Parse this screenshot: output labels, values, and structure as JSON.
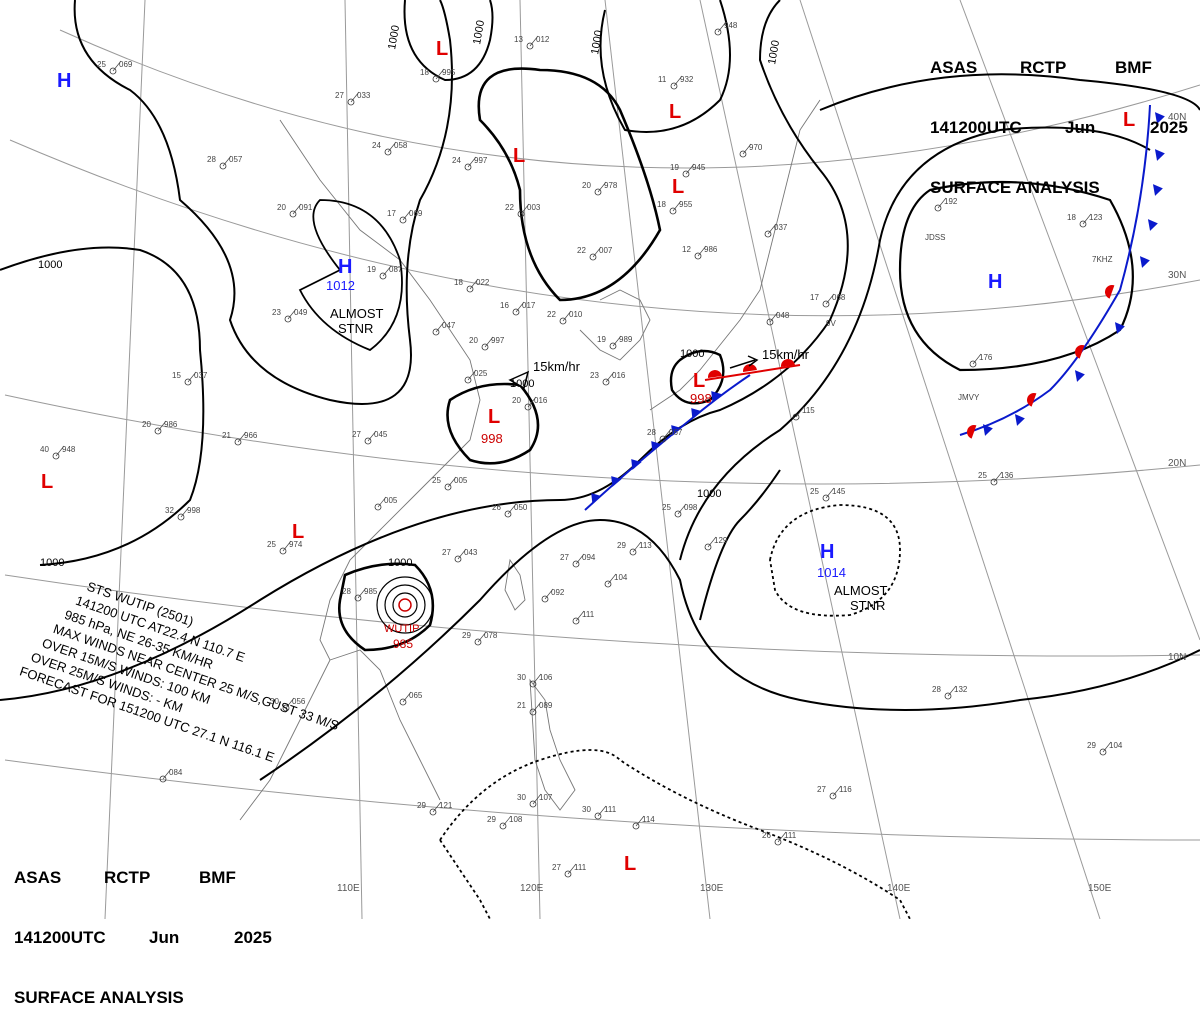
{
  "header": {
    "agency_code": "ASAS",
    "station": "RCTP",
    "bureau": "BMF",
    "valid_time": "141200UTC",
    "month": "Jun",
    "year": "2025",
    "product": "SURFACE ANALYSIS"
  },
  "colors": {
    "high": "#1a1aff",
    "low": "#e00000",
    "isobar": "#000000",
    "grid": "#9a9a9a",
    "coast": "#777777",
    "cold_front": "#0a1acc",
    "warm_front": "#e00000",
    "typhoon": "#cc0000"
  },
  "latitude_labels": [
    "40N",
    "30N",
    "20N",
    "10N"
  ],
  "longitude_labels": [
    "110E",
    "120E",
    "130E",
    "140E",
    "150E"
  ],
  "pressure_systems": [
    {
      "type": "H",
      "label": "H",
      "value": ""
    },
    {
      "type": "H",
      "label": "H",
      "value": "1012",
      "note1": "ALMOST",
      "note2": "STNR"
    },
    {
      "type": "H",
      "label": "H",
      "value": ""
    },
    {
      "type": "H",
      "label": "H",
      "value": "1014",
      "note1": "ALMOST",
      "note2": "STNR"
    },
    {
      "type": "L",
      "label": "L",
      "value": ""
    },
    {
      "type": "L",
      "label": "L",
      "value": ""
    },
    {
      "type": "L",
      "label": "L",
      "value": ""
    },
    {
      "type": "L",
      "label": "L",
      "value": ""
    },
    {
      "type": "L",
      "label": "L",
      "value": "998"
    },
    {
      "type": "L",
      "label": "L",
      "value": "998"
    },
    {
      "type": "L",
      "label": "L",
      "value": ""
    },
    {
      "type": "L",
      "label": "L",
      "value": ""
    },
    {
      "type": "L",
      "label": "L",
      "value": ""
    },
    {
      "type": "L",
      "label": "L",
      "value": ""
    }
  ],
  "isobar_labels": [
    "1000",
    "1000",
    "1000",
    "1000",
    "1000",
    "1000",
    "1000",
    "1000",
    "1000",
    "1000"
  ],
  "motion_labels": [
    "15km/hr",
    "15km/hr"
  ],
  "typhoon": {
    "name": "WUTIP",
    "pressure": "985",
    "bulletin": [
      "STS WUTIP (2501)",
      "141200 UTC AT22.4 N 110.7 E",
      "985 hPa, NE 26-35 KM/HR",
      "MAX WINDS NEAR CENTER 25 M/S,GUST 33 M/S",
      "OVER 15M/S WINDS: 100 KM",
      "OVER 25M/S WINDS: - KM",
      "FORECAST FOR 151200 UTC 27.1 N 116.1 E"
    ]
  },
  "station_plots": [
    {
      "a": "25",
      "b": "069"
    },
    {
      "a": "13",
      "b": "012"
    },
    {
      "a": "",
      "b": "948"
    },
    {
      "a": "18",
      "b": "995"
    },
    {
      "a": "11",
      "b": "932"
    },
    {
      "a": "27",
      "b": "033"
    },
    {
      "a": "24",
      "b": "058"
    },
    {
      "a": "24",
      "b": "997"
    },
    {
      "a": "28",
      "b": "057"
    },
    {
      "a": "19",
      "b": "945"
    },
    {
      "a": "",
      "b": "970"
    },
    {
      "a": "20",
      "b": "978"
    },
    {
      "a": "18",
      "b": "955"
    },
    {
      "a": "20",
      "b": "091"
    },
    {
      "a": "17",
      "b": "069"
    },
    {
      "a": "22",
      "b": "003"
    },
    {
      "a": "22",
      "b": "007"
    },
    {
      "a": "12",
      "b": "986"
    },
    {
      "a": "",
      "b": "037"
    },
    {
      "a": "19",
      "b": "087"
    },
    {
      "a": "18",
      "b": "022"
    },
    {
      "a": "16",
      "b": "017"
    },
    {
      "a": "22",
      "b": "010"
    },
    {
      "a": "",
      "b": "192"
    },
    {
      "a": "18",
      "b": "123"
    },
    {
      "a": "17",
      "b": "068"
    },
    {
      "a": "23",
      "b": "049"
    },
    {
      "a": "",
      "b": "047"
    },
    {
      "a": "20",
      "b": "997"
    },
    {
      "a": "19",
      "b": "989"
    },
    {
      "a": "",
      "b": "048"
    },
    {
      "a": "",
      "b": "176"
    },
    {
      "a": "15",
      "b": "037"
    },
    {
      "a": "",
      "b": "025"
    },
    {
      "a": "20",
      "b": "016"
    },
    {
      "a": "23",
      "b": "016"
    },
    {
      "a": "",
      "b": "115"
    },
    {
      "a": "20",
      "b": "986"
    },
    {
      "a": "21",
      "b": "966"
    },
    {
      "a": "27",
      "b": "045"
    },
    {
      "a": "28",
      "b": "067"
    },
    {
      "a": "40",
      "b": "948"
    },
    {
      "a": "25",
      "b": "005"
    },
    {
      "a": "",
      "b": "005"
    },
    {
      "a": "26",
      "b": "050"
    },
    {
      "a": "25",
      "b": "098"
    },
    {
      "a": "25",
      "b": "145"
    },
    {
      "a": "25",
      "b": "136"
    },
    {
      "a": "32",
      "b": "998"
    },
    {
      "a": "25",
      "b": "974"
    },
    {
      "a": "27",
      "b": "043"
    },
    {
      "a": "27",
      "b": "094"
    },
    {
      "a": "29",
      "b": "113"
    },
    {
      "a": "",
      "b": "129"
    },
    {
      "a": "",
      "b": "104"
    },
    {
      "a": "28",
      "b": "985"
    },
    {
      "a": "",
      "b": "092"
    },
    {
      "a": "",
      "b": "111"
    },
    {
      "a": "29",
      "b": "078"
    },
    {
      "a": "30",
      "b": "056"
    },
    {
      "a": "",
      "b": "065"
    },
    {
      "a": "30",
      "b": "106"
    },
    {
      "a": "21",
      "b": "089"
    },
    {
      "a": "28",
      "b": "132"
    },
    {
      "a": "",
      "b": "084"
    },
    {
      "a": "29",
      "b": "104"
    },
    {
      "a": "27",
      "b": "116"
    },
    {
      "a": "29",
      "b": "121"
    },
    {
      "a": "30",
      "b": "107"
    },
    {
      "a": "29",
      "b": "108"
    },
    {
      "a": "30",
      "b": "111"
    },
    {
      "a": "",
      "b": "114"
    },
    {
      "a": "26",
      "b": "111"
    },
    {
      "a": "27",
      "b": "111"
    }
  ],
  "station_ids": [
    "JDSS",
    "7KHZ",
    "9V",
    "JMVY"
  ]
}
